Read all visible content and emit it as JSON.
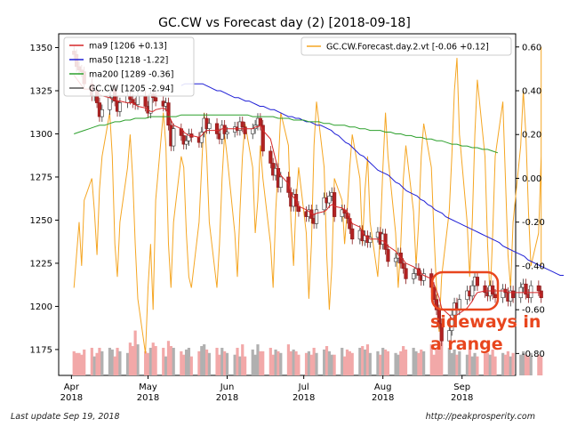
{
  "chart_data": {
    "type": "candlestick",
    "title": "GC.CW vs Forecast day (2)  [2018-09-18]",
    "x_ticks": [
      {
        "date": "2018-04-01",
        "label1": "Apr",
        "label2": "2018"
      },
      {
        "date": "2018-05-01",
        "label1": "May",
        "label2": "2018"
      },
      {
        "date": "2018-06-01",
        "label1": "Jun",
        "label2": "2018"
      },
      {
        "date": "2018-07-01",
        "label1": "Jul",
        "label2": "2018"
      },
      {
        "date": "2018-08-01",
        "label1": "Aug",
        "label2": "2018"
      },
      {
        "date": "2018-09-01",
        "label1": "Sep",
        "label2": "2018"
      }
    ],
    "x_range": [
      "2018-03-27",
      "2018-09-22"
    ],
    "y_left": {
      "min": 1160,
      "max": 1358,
      "ticks": [
        1175,
        1200,
        1225,
        1250,
        1275,
        1300,
        1325,
        1350
      ]
    },
    "y_right": {
      "min": -0.9,
      "max": 0.66,
      "ticks": [
        0.6,
        0.4,
        0.2,
        0.0,
        -0.2,
        -0.4,
        -0.6,
        -0.8
      ],
      "tick_labels": [
        "0.60",
        "0.40",
        "0.20",
        "0.00",
        "-0.20",
        "-0.40",
        "-0.60",
        "-0.80"
      ]
    },
    "grid": false,
    "legend_left": {
      "placement": "top-left",
      "entries": [
        {
          "label": "ma9 [1206 +0.13]",
          "color": "#d62728"
        },
        {
          "label": "ma50 [1218 -1.22]",
          "color": "#1f1fd6"
        },
        {
          "label": "ma200 [1289 -0.36]",
          "color": "#2ca02c"
        },
        {
          "label": "GC.CW [1205 -2.94]",
          "color": "#555555"
        }
      ]
    },
    "legend_right": {
      "placement": "top-right",
      "entries": [
        {
          "label": "GC.CW.Forecast.day.2.vt [-0.06 +0.12]",
          "color": "#f5a623"
        }
      ]
    },
    "annotation": {
      "line1": "sideways in",
      "line2": "a range",
      "color": "#e8461e"
    },
    "candles": {
      "start_date": "2018-04-02",
      "closes": [
        1346,
        1339,
        1337,
        1336,
        1329,
        1322,
        1325,
        1318,
        1310,
        1314,
        1321,
        1326,
        1319,
        1313,
        1318,
        1322,
        1320,
        1318,
        1317,
        1322,
        1316,
        1312,
        1323,
        1321,
        1319,
        1316,
        1318,
        1305,
        1293,
        1303,
        1299,
        1294,
        1296,
        1300,
        1298,
        1295,
        1301,
        1309,
        1303,
        1306,
        1300,
        1297,
        1305,
        1300,
        1301,
        1304,
        1302,
        1307,
        1304,
        1300,
        1303,
        1305,
        1309,
        1305,
        1290,
        1283,
        1276,
        1280,
        1269,
        1275,
        1266,
        1258,
        1265,
        1258,
        1255,
        1252,
        1256,
        1251,
        1248,
        1256,
        1263,
        1260,
        1264,
        1266,
        1252,
        1256,
        1254,
        1251,
        1245,
        1239,
        1244,
        1238,
        1241,
        1237,
        1240,
        1243,
        1236,
        1242,
        1233,
        1226,
        1228,
        1231,
        1225,
        1222,
        1216,
        1219,
        1222,
        1218,
        1215,
        1219,
        1211,
        1204,
        1198,
        1190,
        1180,
        1186,
        1195,
        1202,
        1198,
        1204,
        1209,
        1206,
        1212,
        1217,
        1212,
        1208,
        1206,
        1212,
        1207,
        1205,
        1210,
        1208,
        1203,
        1209,
        1205,
        1211,
        1213,
        1207,
        1205,
        1212,
        1209,
        1205
      ]
    },
    "ma9": [
      1334,
      1332,
      1330,
      1328,
      1326,
      1326,
      1325,
      1324,
      1323,
      1322,
      1321,
      1320,
      1320,
      1319,
      1319,
      1318,
      1318,
      1318,
      1317,
      1316,
      1315,
      1314,
      1313,
      1313,
      1314,
      1315,
      1314,
      1312,
      1308,
      1305,
      1303,
      1301,
      1300,
      1299,
      1299,
      1298,
      1299,
      1301,
      1302,
      1302,
      1302,
      1302,
      1303,
      1303,
      1303,
      1303,
      1303,
      1303,
      1303,
      1303,
      1303,
      1304,
      1304,
      1305,
      1302,
      1297,
      1291,
      1285,
      1279,
      1276,
      1271,
      1266,
      1263,
      1262,
      1258,
      1256,
      1255,
      1254,
      1253,
      1254,
      1255,
      1256,
      1258,
      1259,
      1258,
      1257,
      1256,
      1255,
      1251,
      1248,
      1246,
      1243,
      1241,
      1240,
      1239,
      1239,
      1238,
      1238,
      1237,
      1235,
      1232,
      1230,
      1228,
      1227,
      1225,
      1223,
      1222,
      1221,
      1219,
      1218,
      1216,
      1213,
      1209,
      1205,
      1199,
      1195,
      1193,
      1193,
      1195,
      1196,
      1199,
      1201,
      1203,
      1206,
      1208,
      1209,
      1209,
      1209,
      1209,
      1209,
      1209,
      1209,
      1208,
      1208,
      1208,
      1208,
      1208,
      1208,
      1208,
      1208,
      1208,
      1206
    ],
    "ma50": [
      1328,
      1329,
      1329,
      1329,
      1329,
      1329,
      1329,
      1328,
      1327,
      1326,
      1325,
      1325,
      1324,
      1323,
      1322,
      1321,
      1321,
      1320,
      1319,
      1319,
      1318,
      1317,
      1316,
      1316,
      1315,
      1314,
      1314,
      1313,
      1312,
      1311,
      1310,
      1310,
      1309,
      1309,
      1308,
      1307,
      1307,
      1306,
      1305,
      1305,
      1304,
      1303,
      1302,
      1300,
      1299,
      1297,
      1295,
      1294,
      1292,
      1290,
      1288,
      1287,
      1285,
      1283,
      1281,
      1279,
      1278,
      1277,
      1276,
      1274,
      1272,
      1271,
      1269,
      1267,
      1266,
      1265,
      1264,
      1262,
      1261,
      1259,
      1258,
      1256,
      1255,
      1254,
      1252,
      1251,
      1250,
      1249,
      1248,
      1247,
      1246,
      1245,
      1244,
      1243,
      1242,
      1241,
      1240,
      1239,
      1238,
      1237,
      1235,
      1234,
      1233,
      1232,
      1231,
      1230,
      1229,
      1227,
      1226,
      1225,
      1224,
      1223,
      1222,
      1221,
      1220,
      1219,
      1218,
      1218
    ],
    "ma50_start_date": "2018-05-14",
    "ma200": [
      1300,
      1301,
      1302,
      1303,
      1304,
      1305,
      1305,
      1306,
      1307,
      1307,
      1308,
      1308,
      1309,
      1309,
      1309,
      1310,
      1310,
      1310,
      1310,
      1310,
      1310,
      1311,
      1311,
      1311,
      1311,
      1311,
      1311,
      1311,
      1311,
      1311,
      1311,
      1311,
      1311,
      1311,
      1311,
      1310,
      1310,
      1310,
      1310,
      1310,
      1309,
      1309,
      1309,
      1308,
      1308,
      1308,
      1307,
      1307,
      1307,
      1306,
      1306,
      1305,
      1305,
      1305,
      1304,
      1304,
      1303,
      1303,
      1302,
      1302,
      1302,
      1301,
      1301,
      1300,
      1300,
      1299,
      1299,
      1298,
      1298,
      1297,
      1297,
      1296,
      1296,
      1295,
      1294,
      1294,
      1293,
      1293,
      1292,
      1292,
      1291,
      1291,
      1290,
      1289
    ],
    "ma200_step_days": 2,
    "forecast": [
      -0.5,
      -0.35,
      -0.2,
      -0.4,
      -0.1,
      0.0,
      -0.15,
      -0.35,
      -0.05,
      0.1,
      0.3,
      0.1,
      -0.3,
      -0.45,
      -0.2,
      0.05,
      0.2,
      0.0,
      -0.3,
      -0.55,
      -0.8,
      -0.5,
      -0.3,
      -0.6,
      -0.1,
      0.3,
      0.15,
      -0.3,
      -0.5,
      -0.2,
      0.1,
      0.05,
      -0.25,
      -0.45,
      -0.5,
      -0.2,
      0.05,
      0.3,
      0.1,
      -0.2,
      -0.5,
      -0.3,
      0.0,
      0.2,
      0.1,
      -0.25,
      -0.45,
      -0.15,
      0.1,
      0.25,
      0.05,
      -0.25,
      -0.1,
      0.15,
      0.0,
      -0.3,
      -0.5,
      -0.15,
      0.05,
      0.3,
      0.15,
      -0.2,
      -0.4,
      -0.1,
      0.05,
      -0.25,
      -0.55,
      -0.3,
      0.15,
      0.35,
      0.05,
      -0.35,
      -0.6,
      -0.4,
      0.0,
      -0.1,
      -0.3,
      -0.15,
      0.05,
      0.2,
      0.0,
      -0.3,
      -0.05,
      0.1,
      -0.2,
      -0.45,
      -0.25,
      0.05,
      0.3,
      0.1,
      -0.25,
      -0.5,
      -0.3,
      0.0,
      0.15,
      -0.15,
      -0.4,
      -0.2,
      0.1,
      0.25,
      0.05,
      -0.25,
      -0.5,
      -0.7,
      -0.45,
      -0.15,
      0.1,
      0.4,
      0.55,
      0.2,
      -0.2,
      -0.45,
      -0.2,
      0.2,
      0.45,
      0.1,
      -0.3,
      -0.55,
      -0.25,
      0.1,
      0.35,
      0.0,
      -0.35,
      -0.5,
      -0.2,
      0.15,
      0.4,
      0.2,
      -0.15,
      -0.4,
      -0.25,
      0.1,
      0.35,
      0.6,
      -0.1,
      -0.4,
      -0.1
    ],
    "volume": {
      "min_price_y": 1160,
      "bars": [
        1174,
        1173,
        1173,
        1172,
        1175,
        1176,
        1171,
        1173,
        1176,
        1174,
        1176,
        1175,
        1171,
        1176,
        1174,
        1173,
        1179,
        1177,
        1175,
        1178,
        1174,
        1173,
        1176,
        1179,
        1177,
        1176,
        1171,
        1180,
        1177,
        1176,
        1174,
        1172,
        1175,
        1176,
        1171,
        1174,
        1177,
        1178,
        1175,
        1173,
        1176,
        1172,
        1176,
        1174,
        1173,
        1172,
        1176,
        1171,
        1178,
        1171,
        1175,
        1172,
        1178,
        1174,
        1174,
        1176,
        1172,
        1175,
        1174,
        1173,
        1178,
        1174,
        1175,
        1174,
        1172,
        1173,
        1174,
        1172,
        1176,
        1173,
        1175,
        1177,
        1174,
        1172,
        1172,
        1176,
        1171,
        1175,
        1174,
        1173,
        1176,
        1177,
        1175,
        1178,
        1173,
        1174,
        1172,
        1176,
        1175,
        1174,
        1173,
        1172,
        1174,
        1177,
        1175,
        1176,
        1174,
        1173,
        1175,
        1174,
        1178,
        1172,
        1176,
        1177,
        1180,
        1176,
        1173,
        1175,
        1172,
        1174,
        1172,
        1175,
        1171,
        1173,
        1171,
        1174,
        1173,
        1172,
        1175,
        1171,
        1173,
        1172,
        1174,
        1171,
        1173,
        1172,
        1174,
        1172,
        1171,
        1173,
        1172,
        1171
      ],
      "tall_pink_date": "2018-04-26",
      "tall_pink_top": 1186
    }
  },
  "footer": {
    "left": "Last update Sep 19, 2018",
    "right": "http://peakprosperity.com"
  }
}
